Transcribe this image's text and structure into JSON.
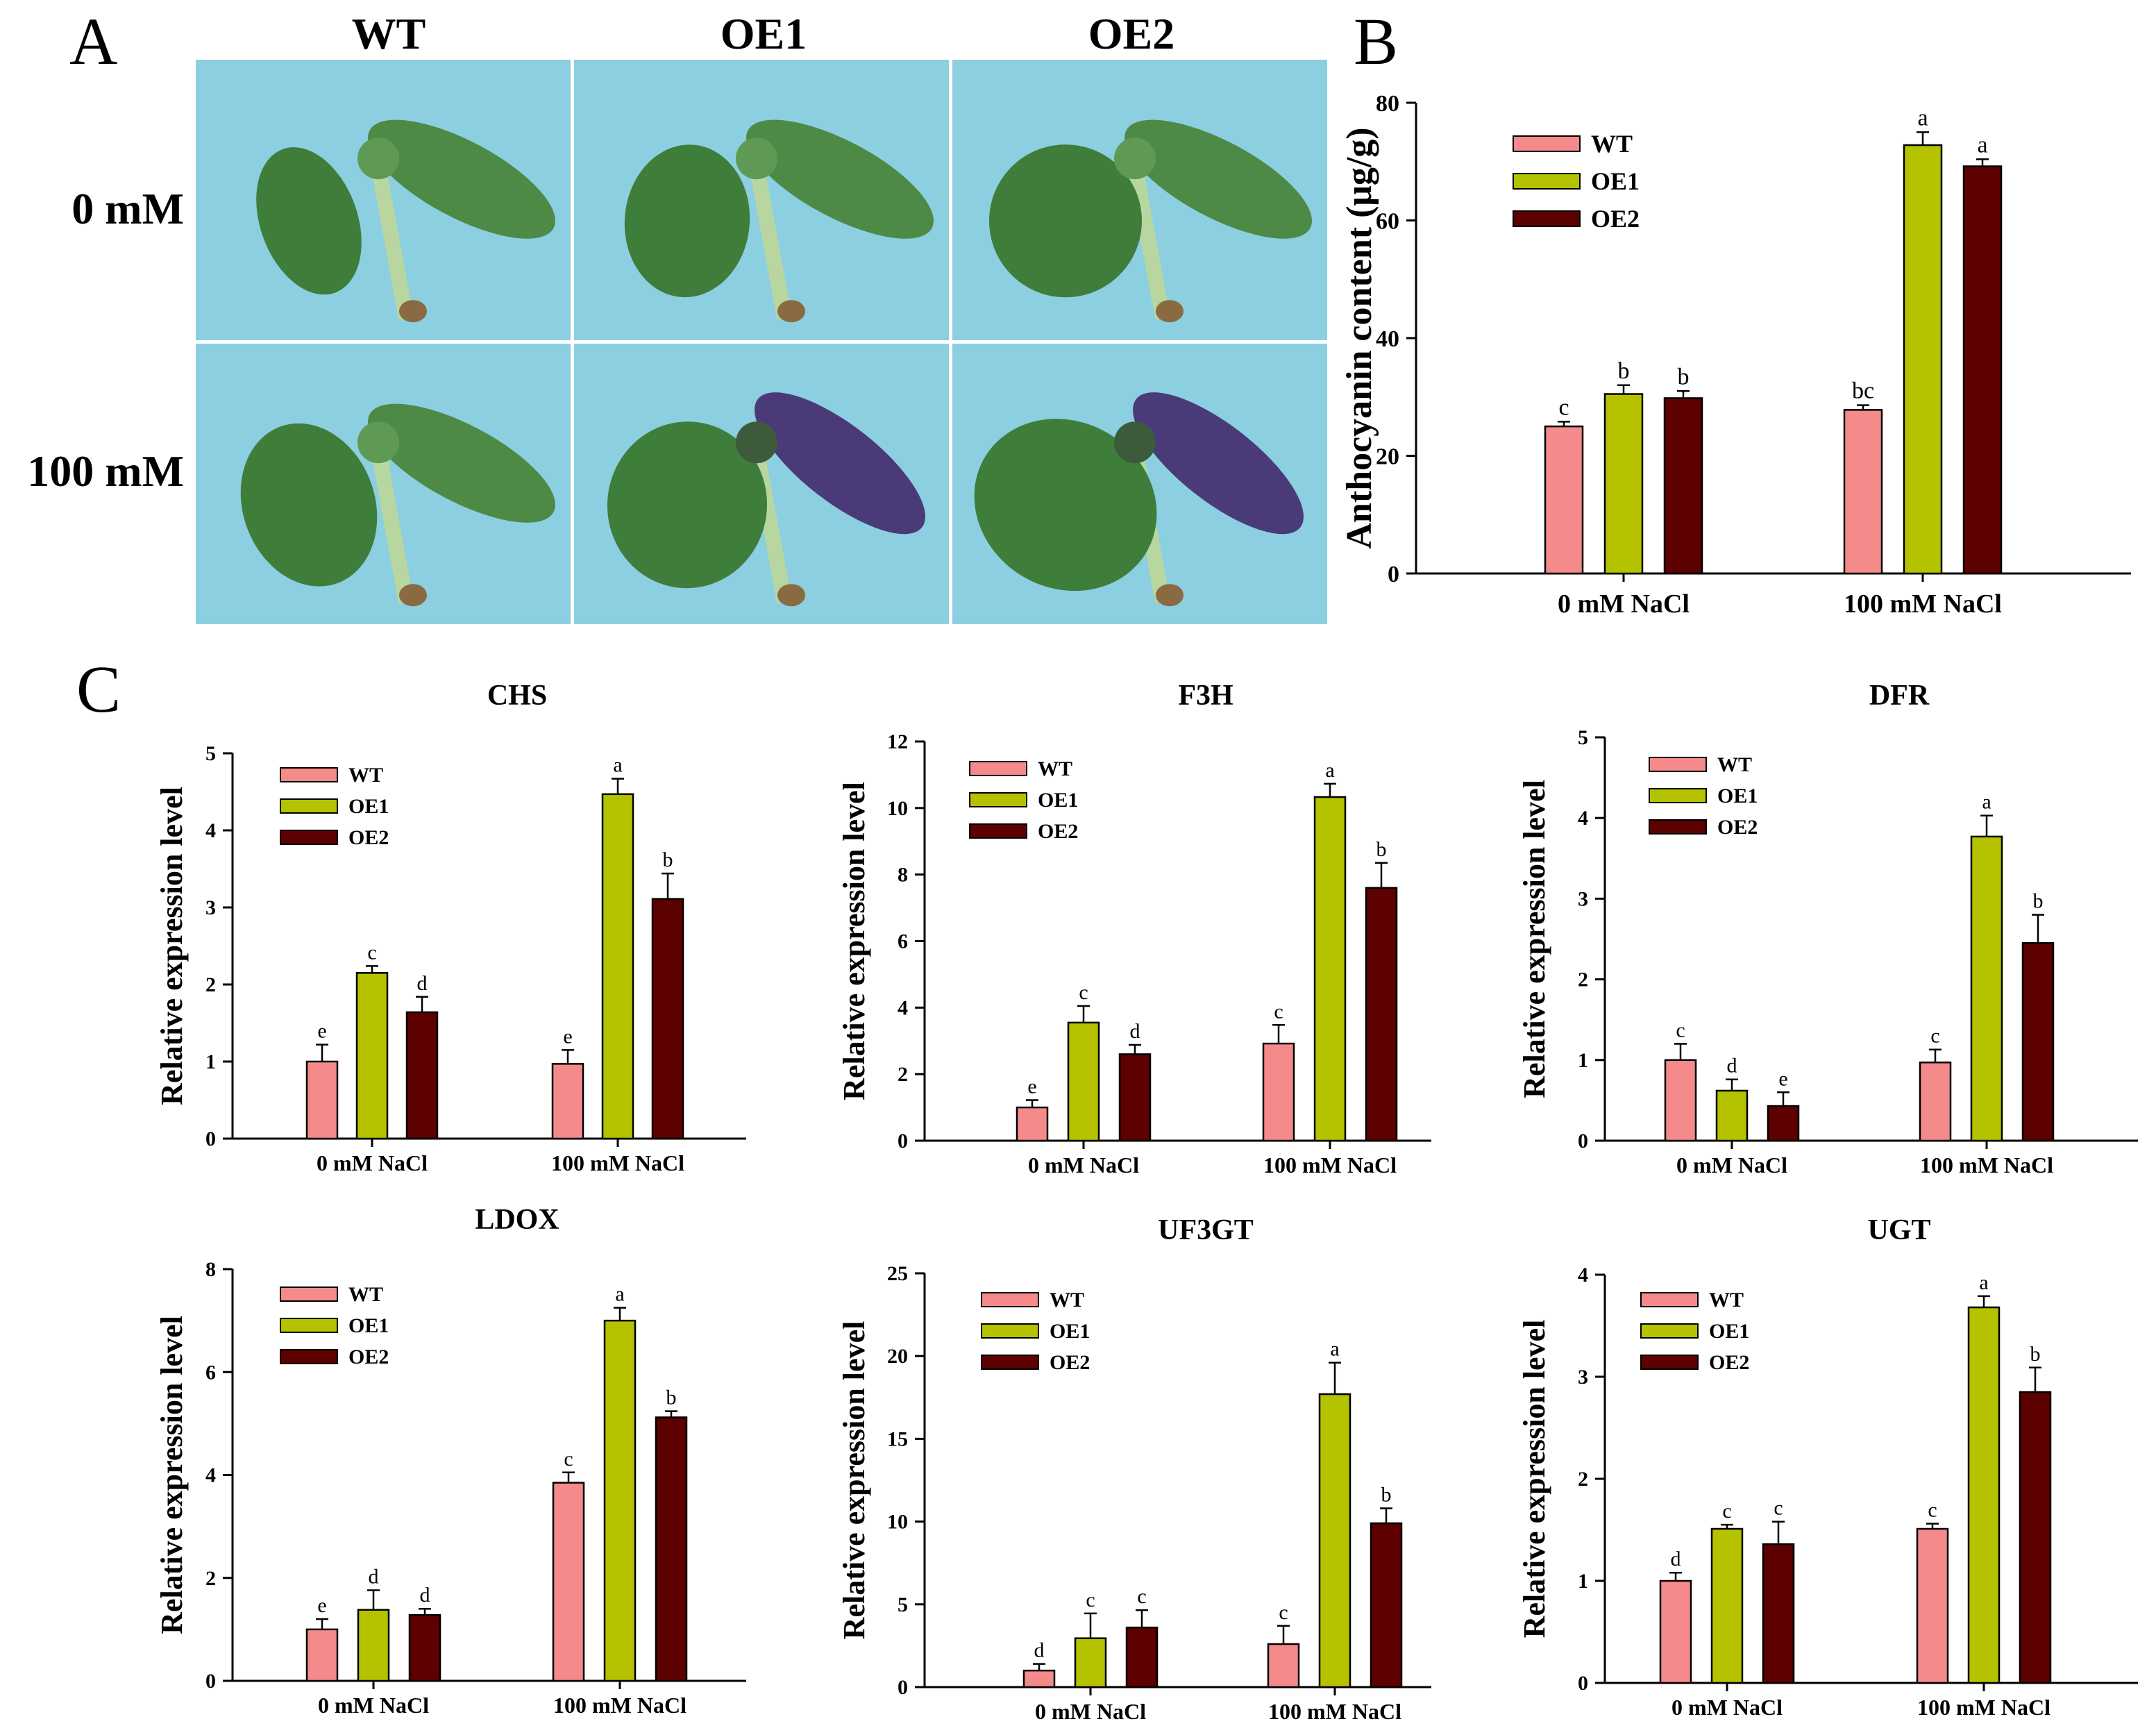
{
  "panel_labels": {
    "a": "A",
    "b": "B",
    "c": "C"
  },
  "photos": {
    "columns": [
      "WT",
      "OE1",
      "OE2"
    ],
    "rows": [
      "0 mM",
      "100 mM"
    ],
    "colors": {
      "background": "#8ccfe0",
      "leaf": "#3f7d3a",
      "purple": "#4a3a78"
    }
  },
  "series_colors": {
    "WT": "#f48a8a",
    "OE1": "#b4c200",
    "OE2": "#5c0000"
  },
  "chart_data": [
    {
      "id": "B",
      "type": "bar",
      "title": "",
      "ylabel": "Anthocyanin content (μg/g)",
      "xlabel": "",
      "categories": [
        "0 mM NaCl",
        "100 mM NaCl"
      ],
      "ylim": [
        0,
        80
      ],
      "yticks": [
        "0",
        "20",
        "40",
        "60",
        "80"
      ],
      "legend": "top-left",
      "series": [
        {
          "name": "WT",
          "values": [
            25,
            27.8
          ],
          "errors": [
            0.8,
            0.8
          ],
          "letters": [
            "c",
            "bc"
          ]
        },
        {
          "name": "OE1",
          "values": [
            30.5,
            72.8
          ],
          "errors": [
            1.5,
            2.2
          ],
          "letters": [
            "b",
            "a"
          ]
        },
        {
          "name": "OE2",
          "values": [
            29.8,
            69.2
          ],
          "errors": [
            1.2,
            1.2
          ],
          "letters": [
            "b",
            "a"
          ]
        }
      ]
    },
    {
      "id": "CHS",
      "type": "bar",
      "title": "CHS",
      "ylabel": "Relative expression level",
      "xlabel": "",
      "categories": [
        "0 mM NaCl",
        "100 mM NaCl"
      ],
      "ylim": [
        0,
        5
      ],
      "yticks": [
        "0",
        "1",
        "2",
        "3",
        "4",
        "5"
      ],
      "legend": "top-left",
      "series": [
        {
          "name": "WT",
          "values": [
            1.0,
            0.97
          ],
          "errors": [
            0.22,
            0.18
          ],
          "letters": [
            "e",
            "e"
          ]
        },
        {
          "name": "OE1",
          "values": [
            2.15,
            4.47
          ],
          "errors": [
            0.09,
            0.2
          ],
          "letters": [
            "c",
            "a"
          ]
        },
        {
          "name": "OE2",
          "values": [
            1.64,
            3.11
          ],
          "errors": [
            0.2,
            0.33
          ],
          "letters": [
            "d",
            "b"
          ]
        }
      ]
    },
    {
      "id": "F3H",
      "type": "bar",
      "title": "F3H",
      "ylabel": "Relative expression level",
      "xlabel": "",
      "categories": [
        "0 mM NaCl",
        "100 mM NaCl"
      ],
      "ylim": [
        0,
        12
      ],
      "yticks": [
        "0",
        "2",
        "4",
        "6",
        "8",
        "10",
        "12"
      ],
      "legend": "top-left",
      "series": [
        {
          "name": "WT",
          "values": [
            1.0,
            2.92
          ],
          "errors": [
            0.22,
            0.56
          ],
          "letters": [
            "e",
            "c"
          ]
        },
        {
          "name": "OE1",
          "values": [
            3.55,
            10.33
          ],
          "errors": [
            0.5,
            0.4
          ],
          "letters": [
            "c",
            "a"
          ]
        },
        {
          "name": "OE2",
          "values": [
            2.6,
            7.6
          ],
          "errors": [
            0.28,
            0.75
          ],
          "letters": [
            "d",
            "b"
          ]
        }
      ]
    },
    {
      "id": "DFR",
      "type": "bar",
      "title": "DFR",
      "ylabel": "Relative expression level",
      "xlabel": "",
      "categories": [
        "0 mM NaCl",
        "100 mM NaCl"
      ],
      "ylim": [
        0,
        5
      ],
      "yticks": [
        "0",
        "1",
        "2",
        "3",
        "4",
        "5"
      ],
      "legend": "top-left",
      "series": [
        {
          "name": "WT",
          "values": [
            1.0,
            0.97
          ],
          "errors": [
            0.2,
            0.16
          ],
          "letters": [
            "c",
            "c"
          ]
        },
        {
          "name": "OE1",
          "values": [
            0.62,
            3.77
          ],
          "errors": [
            0.14,
            0.26
          ],
          "letters": [
            "d",
            "a"
          ]
        },
        {
          "name": "OE2",
          "values": [
            0.43,
            2.45
          ],
          "errors": [
            0.17,
            0.35
          ],
          "letters": [
            "e",
            "b"
          ]
        }
      ]
    },
    {
      "id": "LDOX",
      "type": "bar",
      "title": "LDOX",
      "ylabel": "Relative expression level",
      "xlabel": "",
      "categories": [
        "0 mM NaCl",
        "100 mM NaCl"
      ],
      "ylim": [
        0,
        8
      ],
      "yticks": [
        "0",
        "2",
        "4",
        "6",
        "8"
      ],
      "legend": "top-left",
      "series": [
        {
          "name": "WT",
          "values": [
            1.0,
            3.85
          ],
          "errors": [
            0.2,
            0.2
          ],
          "letters": [
            "e",
            "c"
          ]
        },
        {
          "name": "OE1",
          "values": [
            1.38,
            7.0
          ],
          "errors": [
            0.38,
            0.25
          ],
          "letters": [
            "d",
            "a"
          ]
        },
        {
          "name": "OE2",
          "values": [
            1.28,
            5.12
          ],
          "errors": [
            0.12,
            0.12
          ],
          "letters": [
            "d",
            "b"
          ]
        }
      ]
    },
    {
      "id": "UF3GT",
      "type": "bar",
      "title": "UF3GT",
      "ylabel": "Relative expression level",
      "xlabel": "",
      "categories": [
        "0 mM NaCl",
        "100 mM NaCl"
      ],
      "ylim": [
        0,
        25
      ],
      "yticks": [
        "0",
        "5",
        "10",
        "15",
        "20",
        "25"
      ],
      "legend": "top-left",
      "series": [
        {
          "name": "WT",
          "values": [
            1.0,
            2.6
          ],
          "errors": [
            0.4,
            1.1
          ],
          "letters": [
            "d",
            "c"
          ]
        },
        {
          "name": "OE1",
          "values": [
            2.95,
            17.7
          ],
          "errors": [
            1.5,
            1.9
          ],
          "letters": [
            "c",
            "a"
          ]
        },
        {
          "name": "OE2",
          "values": [
            3.6,
            9.9
          ],
          "errors": [
            1.05,
            0.9
          ],
          "letters": [
            "c",
            "b"
          ]
        }
      ]
    },
    {
      "id": "UGT",
      "type": "bar",
      "title": "UGT",
      "ylabel": "Relative expression level",
      "xlabel": "",
      "categories": [
        "0 mM NaCl",
        "100 mM NaCl"
      ],
      "ylim": [
        0,
        4
      ],
      "yticks": [
        "0",
        "1",
        "2",
        "3",
        "4"
      ],
      "legend": "top-left",
      "series": [
        {
          "name": "WT",
          "values": [
            1.0,
            1.51
          ],
          "errors": [
            0.08,
            0.05
          ],
          "letters": [
            "d",
            "c"
          ]
        },
        {
          "name": "OE1",
          "values": [
            1.51,
            3.68
          ],
          "errors": [
            0.04,
            0.11
          ],
          "letters": [
            "c",
            "a"
          ]
        },
        {
          "name": "OE2",
          "values": [
            1.36,
            2.85
          ],
          "errors": [
            0.22,
            0.24
          ],
          "letters": [
            "c",
            "b"
          ]
        }
      ]
    }
  ]
}
